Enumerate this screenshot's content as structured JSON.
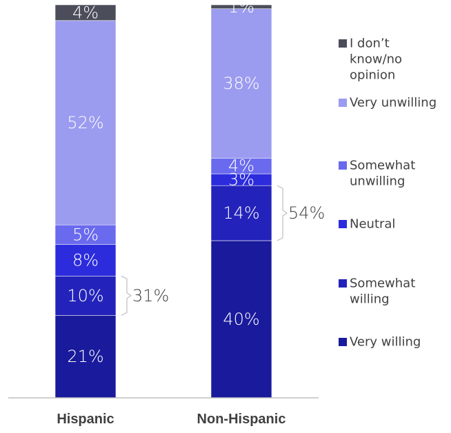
{
  "chart_data": {
    "type": "bar",
    "stacked": true,
    "categories": [
      "Hispanic",
      "Non-Hispanic"
    ],
    "series": [
      {
        "name": "Very willing",
        "color": "#1a1a9c",
        "values": [
          21,
          40
        ],
        "labels": [
          "21%",
          "40%"
        ]
      },
      {
        "name": "Somewhat willing",
        "color": "#2323bb",
        "values": [
          10,
          14
        ],
        "labels": [
          "10%",
          "14%"
        ]
      },
      {
        "name": "Neutral",
        "color": "#2c2cdd",
        "values": [
          8,
          3
        ],
        "labels": [
          "8%",
          "3%"
        ]
      },
      {
        "name": "Somewhat unwilling",
        "color": "#6a6aee",
        "values": [
          5,
          4
        ],
        "labels": [
          "5%",
          "4%"
        ]
      },
      {
        "name": "Very unwilling",
        "color": "#9b9bf0",
        "values": [
          52,
          38
        ],
        "labels": [
          "52%",
          "38%"
        ]
      },
      {
        "name": "I don’t know/no opinion",
        "color": "#4b4d5a",
        "values": [
          4,
          1
        ],
        "labels": [
          "4%",
          "1%"
        ]
      }
    ],
    "brackets": [
      {
        "category": "Hispanic",
        "label": "31%",
        "value": 31
      },
      {
        "category": "Non-Hispanic",
        "label": "54%",
        "value": 54
      }
    ],
    "legend": {
      "position": "right",
      "entries": [
        {
          "lines": [
            "I don’t",
            "know/no",
            "opinion"
          ],
          "color": "#4b4d5a"
        },
        {
          "lines": [
            "Very unwilling"
          ],
          "color": "#9b9bf0"
        },
        {
          "lines": [
            "Somewhat",
            "unwilling"
          ],
          "color": "#6a6aee"
        },
        {
          "lines": [
            "Neutral"
          ],
          "color": "#2c2cdd"
        },
        {
          "lines": [
            "Somewhat",
            "willing"
          ],
          "color": "#2323bb"
        },
        {
          "lines": [
            "Very willing"
          ],
          "color": "#1a1a9c"
        }
      ]
    },
    "grid": false
  }
}
